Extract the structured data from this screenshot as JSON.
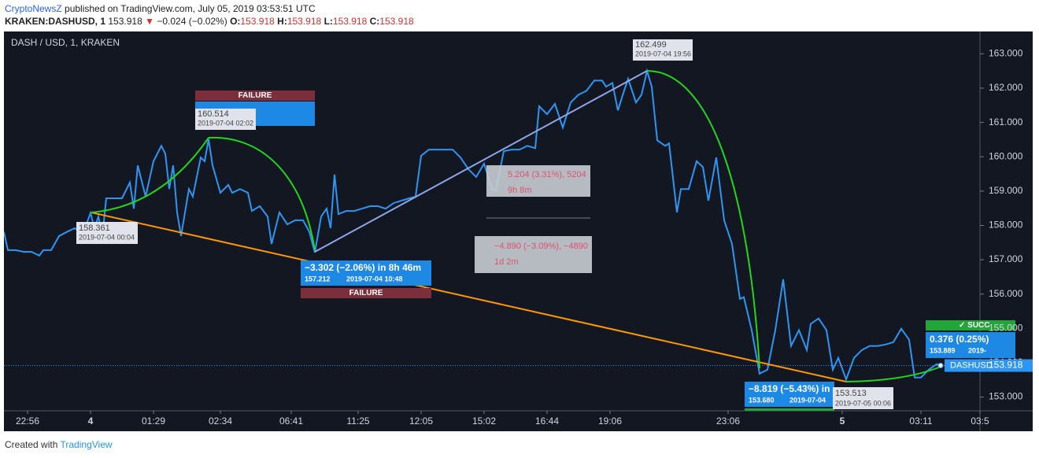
{
  "header": {
    "author": "CryptoNewsZ",
    "published": "published on TradingView.com, July 05, 2019 03:53:51 UTC",
    "symbol": "KRAKEN:DASHUSD, 1",
    "last": "153.918",
    "arrow": "▼",
    "change": "−0.024 (−0.02%)",
    "o_label": "O:",
    "o": "153.918",
    "h_label": "H:",
    "h": "153.918",
    "l_label": "L:",
    "l": "153.918",
    "c_label": "C:",
    "c": "153.918"
  },
  "chart_data": {
    "type": "line",
    "title": "DASH / USD, 1, KRAKEN",
    "x": [
      0,
      0.5,
      1.5,
      2.5,
      3.5,
      4.5,
      5,
      6,
      7,
      8,
      9,
      10,
      11,
      11.5,
      12,
      12.5,
      13,
      14,
      15,
      16,
      16.5,
      17,
      18,
      19,
      20,
      20.5,
      21,
      21.5,
      22,
      22.5,
      23.5,
      24,
      25,
      25.5,
      26,
      26.5,
      27.5,
      28.5,
      29,
      30,
      31,
      31.5,
      32.5,
      33.5,
      34,
      35,
      36,
      37,
      38,
      38.8,
      39.5,
      40.3,
      41,
      41.5,
      42,
      42.5,
      43.5,
      44.5,
      45.5,
      46.5,
      47.5,
      48.5,
      49.5,
      50.5,
      51.5,
      52.3,
      53,
      54,
      55,
      56,
      57,
      58,
      59,
      60,
      61,
      62,
      62.5,
      63.5,
      64.5,
      65.5,
      66.5,
      67.5,
      68,
      69,
      70,
      71,
      72,
      73,
      74,
      75,
      76,
      76.5,
      77.3,
      78,
      78.7,
      79.3,
      80.3,
      81,
      81.7,
      82.3,
      83,
      84,
      84.5,
      85.5,
      86,
      87,
      88,
      88.8,
      89.5,
      90.5,
      91.5,
      92.5,
      93.5,
      94,
      95,
      96,
      97,
      98,
      99,
      100,
      101,
      102,
      102.5,
      103.5,
      104.5,
      105.3,
      106,
      107,
      108,
      109,
      110,
      111,
      112,
      113,
      114,
      115,
      115.7,
      116.5,
      117.5,
      118.5,
      119
    ],
    "series": [
      {
        "name": "DASHUSD",
        "color": "#2f95f2",
        "values": [
          157.81,
          157.28,
          157.28,
          157.23,
          157.23,
          157.12,
          157.28,
          157.28,
          157.69,
          157.81,
          157.92,
          157.74,
          158.361,
          157.92,
          158.26,
          157.69,
          158.79,
          158.79,
          158.79,
          159.25,
          158.49,
          159.75,
          158.84,
          159.87,
          160.32,
          160.09,
          159.06,
          159.75,
          158.38,
          157.69,
          159.06,
          158.84,
          159.98,
          159.87,
          160.514,
          159.75,
          158.95,
          159.18,
          158.95,
          159.06,
          158.95,
          158.42,
          158.56,
          158.26,
          157.46,
          158.38,
          158.03,
          158.15,
          158.15,
          157.81,
          157.212,
          158.26,
          158.49,
          157.92,
          159.48,
          158.33,
          158.42,
          158.42,
          158.49,
          158.56,
          158.56,
          158.49,
          158.65,
          158.72,
          158.79,
          158.84,
          160.03,
          160.21,
          160.21,
          160.21,
          160.21,
          159.98,
          159.64,
          159.41,
          159.8,
          159.06,
          159.02,
          160.16,
          160.21,
          160.21,
          160.32,
          160.25,
          161.47,
          161.24,
          161.54,
          160.85,
          161.58,
          161.81,
          161.92,
          162.22,
          162.22,
          162.04,
          162.15,
          161.35,
          161.86,
          162.27,
          161.58,
          161.81,
          162.499,
          162.04,
          160.48,
          160.32,
          160.39,
          158.38,
          159.06,
          159.06,
          159.87,
          159.7,
          158.72,
          159.98,
          158.15,
          157.46,
          155.86,
          155.91,
          154.95,
          153.68,
          153.8,
          154.95,
          156.43,
          154.49,
          154.95,
          154.37,
          155.13,
          155.29,
          154.95,
          153.8,
          154.14,
          153.513,
          154.14,
          154.37,
          154.49,
          154.49,
          154.53,
          154.6,
          154.99,
          154.67,
          153.57,
          153.57,
          153.8,
          153.96,
          153.918
        ]
      }
    ],
    "xlim": [
      0,
      124.5
    ],
    "xticks": [
      {
        "value": 3,
        "label": "22:56"
      },
      {
        "value": 11,
        "label": "4"
      },
      {
        "value": 19,
        "label": "01:29"
      },
      {
        "value": 27.5,
        "label": "02:34"
      },
      {
        "value": 36.5,
        "label": "06:41"
      },
      {
        "value": 45,
        "label": "11:25"
      },
      {
        "value": 53,
        "label": "12:05"
      },
      {
        "value": 61,
        "label": "15:02"
      },
      {
        "value": 69,
        "label": "16:44"
      },
      {
        "value": 77,
        "label": "19:06"
      },
      {
        "value": 92,
        "label": "23:06"
      },
      {
        "value": 106.5,
        "label": "5"
      },
      {
        "value": 116.5,
        "label": "03:11"
      },
      {
        "value": 124,
        "label": "03:5"
      }
    ],
    "ylim": [
      152.6,
      163.65
    ],
    "yticks": [
      {
        "value": 153,
        "label": "153.000"
      },
      {
        "value": 154,
        "label": "154.000"
      },
      {
        "value": 155,
        "label": "155.000"
      },
      {
        "value": 156,
        "label": "156.000"
      },
      {
        "value": 157,
        "label": "157.000"
      },
      {
        "value": 158,
        "label": "158.000"
      },
      {
        "value": 159,
        "label": "159.000"
      },
      {
        "value": 160,
        "label": "160.000"
      },
      {
        "value": 161,
        "label": "161.000"
      },
      {
        "value": 162,
        "label": "162.000"
      },
      {
        "value": 163,
        "label": "163.000"
      }
    ],
    "grid": false,
    "annotations": {
      "low_start_price": "158.361",
      "low_start_date": "2019-07-04 00:04",
      "peak1_price": "160.514",
      "peak1_date": "2019-07-04 02:02",
      "peak2_price": "162.499",
      "peak2_date": "2019-07-04 19:56",
      "low_end_price": "153.513",
      "low_end_date": "2019-07-05 00:06",
      "failure": "FAILURE",
      "drop1": "−3.302 (−2.06%) in 8h 46m",
      "drop1_price": "157.212",
      "drop1_date": "2019-07-04 10:48",
      "drop2": "−8.819 (−5.43%) in",
      "drop2_price": "153.680",
      "drop2_date": "2019-07-04",
      "gain": "0.376 (0.25%)",
      "gain_price": "153.889",
      "gain_date": "2019-",
      "success": "✓ SUCC",
      "measure1": "5.204 (3.31%), 5204",
      "measure1_time": "9h 8m",
      "measure2": "−4.890 (−3.09%), −4890",
      "measure2_time": "1d 2m"
    }
  },
  "footer": {
    "created": "Created with",
    "brand": "TradingView"
  }
}
